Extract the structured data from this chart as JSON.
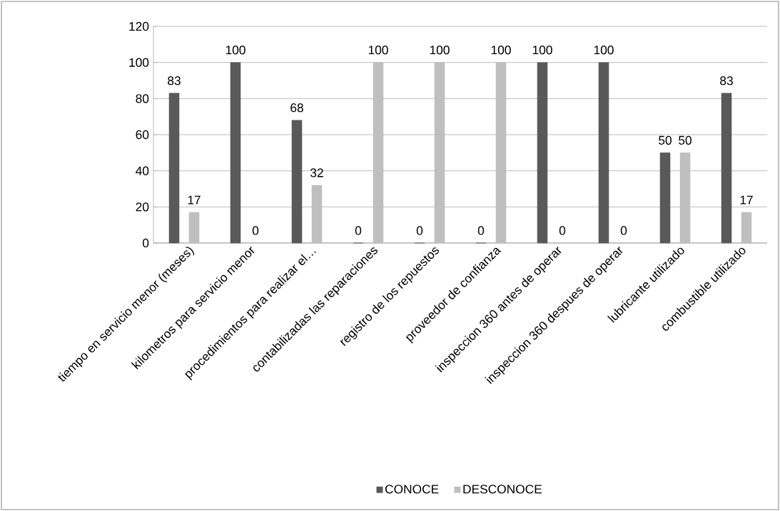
{
  "chart_data": {
    "type": "bar",
    "categories": [
      "tiempo en servicio menor (meses)",
      "kilometros para servicio menor",
      "procedimientos para realizar el…",
      "contabilizadas las reparaciones",
      "registro de los repuestos",
      "proveedor de confianza",
      "inspeccion 360 antes de operar",
      "inspeccion 360 despues de operar",
      "lubricante utilizado",
      "combustible utilizado"
    ],
    "series": [
      {
        "name": "CONOCE",
        "color": "#595959",
        "values": [
          83,
          100,
          68,
          0,
          0,
          0,
          100,
          100,
          50,
          83
        ]
      },
      {
        "name": "DESCONOCE",
        "color": "#bfbfbf",
        "values": [
          17,
          0,
          32,
          100,
          100,
          100,
          0,
          0,
          50,
          17
        ]
      }
    ],
    "ylim": [
      0,
      120
    ],
    "yticks": [
      0,
      20,
      40,
      60,
      80,
      100,
      120
    ],
    "grid": "y",
    "legend": "bottom",
    "data_labels": true
  }
}
